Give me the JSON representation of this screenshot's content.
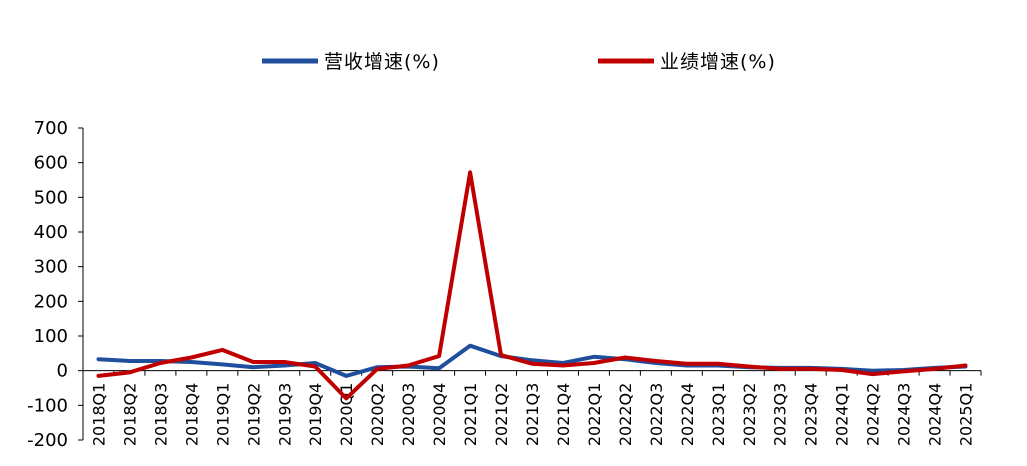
{
  "chart_data": {
    "type": "line",
    "title": "",
    "xlabel": "",
    "ylabel": "",
    "ylim": [
      -200,
      700
    ],
    "yticks": [
      "700",
      "600",
      "500",
      "400",
      "300",
      "200",
      "100",
      "0",
      "-100",
      "-200"
    ],
    "legend_position": "top",
    "grid": false,
    "categories": [
      "2018Q1",
      "2018Q2",
      "2018Q3",
      "2018Q4",
      "2019Q1",
      "2019Q2",
      "2019Q3",
      "2019Q4",
      "2020Q1",
      "2020Q2",
      "2020Q3",
      "2020Q4",
      "2021Q1",
      "2021Q2",
      "2021Q3",
      "2021Q4",
      "2022Q1",
      "2022Q2",
      "2022Q3",
      "2022Q4",
      "2023Q1",
      "2023Q2",
      "2023Q3",
      "2023Q4",
      "2024Q1",
      "2024Q2",
      "2024Q3",
      "2024Q4",
      "2025Q1"
    ],
    "series": [
      {
        "name": "营收增速(%)",
        "color": "#1f4e9c",
        "values": [
          33,
          28,
          28,
          25,
          18,
          10,
          15,
          22,
          -15,
          10,
          12,
          7,
          72,
          42,
          30,
          22,
          40,
          33,
          22,
          15,
          15,
          10,
          8,
          8,
          5,
          0,
          2,
          8,
          12
        ]
      },
      {
        "name": "业绩增速(%)",
        "color": "#c00000",
        "values": [
          -15,
          -5,
          22,
          38,
          60,
          25,
          25,
          12,
          -80,
          5,
          15,
          42,
          572,
          45,
          20,
          15,
          22,
          38,
          28,
          20,
          20,
          12,
          5,
          5,
          2,
          -10,
          -2,
          5,
          15
        ]
      }
    ]
  }
}
